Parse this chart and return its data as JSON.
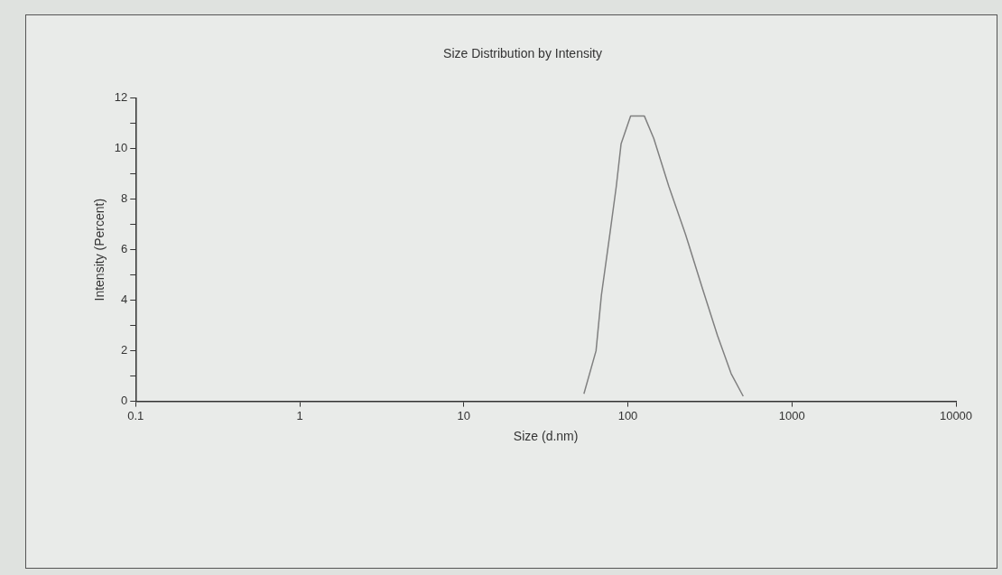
{
  "chart_data": {
    "type": "line",
    "title": "Size Distribution by Intensity",
    "xlabel": "Size (d.nm)",
    "ylabel": "Intensity (Percent)",
    "log": "x",
    "grid": false,
    "legend": false,
    "marker": "none",
    "line_style": "solid",
    "x": [
      54,
      64,
      69,
      78,
      85,
      91,
      104,
      126,
      144,
      178,
      225,
      284,
      352,
      426,
      505
    ],
    "series": [
      {
        "color": "#808080",
        "values": [
          0.3,
          2.0,
          4.2,
          6.7,
          8.5,
          10.2,
          11.3,
          11.3,
          10.4,
          8.5,
          6.6,
          4.5,
          2.6,
          1.1,
          0.2
        ]
      }
    ],
    "xlim": [
      0.1,
      10000
    ],
    "xticks": [
      0.1,
      1,
      10,
      100,
      1000,
      10000
    ],
    "ylim": [
      0,
      12
    ],
    "yticks": [
      0,
      {
        "value": 1,
        "label": null
      },
      2,
      {
        "value": 3,
        "label": null
      },
      4,
      {
        "value": 5,
        "label": null
      },
      6,
      {
        "value": 7,
        "label": null
      },
      8,
      {
        "value": 9,
        "label": null
      },
      10,
      {
        "value": 11,
        "label": null
      },
      12
    ]
  }
}
